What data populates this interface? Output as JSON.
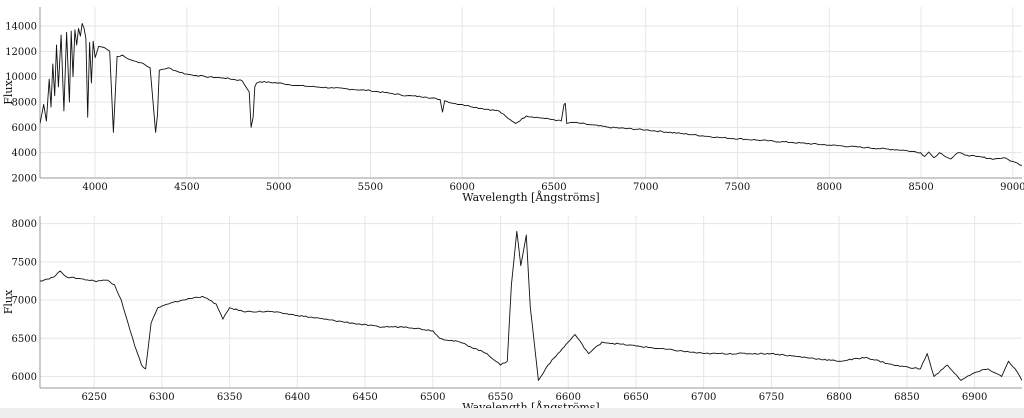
{
  "chart_data": [
    {
      "type": "line",
      "title": "",
      "xlabel": "Wavelength [Ångströms]",
      "ylabel": "Flux",
      "xlim": [
        3700,
        9050
      ],
      "ylim": [
        2000,
        15500
      ],
      "grid": true,
      "xticks": [
        4000,
        4500,
        5000,
        5500,
        6000,
        6500,
        7000,
        7500,
        8000,
        8500,
        9000
      ],
      "yticks": [
        2000,
        4000,
        6000,
        8000,
        10000,
        12000,
        14000
      ],
      "series": [
        {
          "x": [
            3700,
            3720,
            3735,
            3750,
            3760,
            3770,
            3780,
            3790,
            3800,
            3815,
            3830,
            3845,
            3860,
            3870,
            3880,
            3890,
            3900,
            3910,
            3920,
            3930,
            3940,
            3950,
            3960,
            3970,
            3980,
            3990,
            4000,
            4020,
            4050,
            4080,
            4100,
            4120,
            4150,
            4180,
            4200,
            4250,
            4300,
            4330,
            4340,
            4350,
            4380,
            4400,
            4450,
            4500,
            4550,
            4600,
            4700,
            4800,
            4840,
            4850,
            4861,
            4870,
            4880,
            4900,
            5000,
            5100,
            5200,
            5300,
            5400,
            5500,
            5600,
            5700,
            5800,
            5880,
            5893,
            5905,
            5950,
            6000,
            6100,
            6200,
            6250,
            6283,
            6290,
            6350,
            6450,
            6500,
            6540,
            6555,
            6562,
            6570,
            6600,
            6700,
            6800,
            7000,
            7200,
            7400,
            7600,
            7800,
            8000,
            8200,
            8400,
            8498,
            8520,
            8542,
            8570,
            8600,
            8662,
            8700,
            8750,
            8800,
            8900,
            8950,
            9000,
            9050
          ],
          "y": [
            6300,
            7800,
            6500,
            9800,
            7600,
            11000,
            8500,
            12500,
            9200,
            13300,
            7300,
            13500,
            8000,
            13600,
            10000,
            13700,
            12500,
            13800,
            13200,
            14200,
            13800,
            13000,
            6800,
            12700,
            9500,
            12800,
            11500,
            12400,
            12300,
            12000,
            5600,
            11600,
            11700,
            11400,
            11300,
            11100,
            10700,
            5600,
            7000,
            10500,
            10600,
            10700,
            10400,
            10200,
            10100,
            10000,
            9900,
            9700,
            8800,
            6000,
            6800,
            9200,
            9500,
            9600,
            9500,
            9300,
            9200,
            9100,
            9000,
            8900,
            8700,
            8500,
            8400,
            8200,
            7200,
            8100,
            7900,
            7800,
            7500,
            7300,
            6700,
            6400,
            6300,
            6900,
            6700,
            6600,
            6500,
            7800,
            7900,
            6300,
            6400,
            6200,
            6000,
            5800,
            5500,
            5200,
            5000,
            4800,
            4600,
            4400,
            4200,
            4000,
            3700,
            4050,
            3600,
            4000,
            3500,
            4000,
            3800,
            3700,
            3500,
            3600,
            3300,
            3000
          ]
        }
      ]
    },
    {
      "type": "line",
      "title": "",
      "xlabel": "Wavelength [Ångströms]",
      "ylabel": "Flux",
      "xlim": [
        6210,
        6935
      ],
      "ylim": [
        5850,
        8100
      ],
      "grid": true,
      "xticks": [
        6250,
        6300,
        6350,
        6400,
        6450,
        6500,
        6550,
        6600,
        6650,
        6700,
        6750,
        6800,
        6850,
        6900
      ],
      "yticks": [
        6000,
        6500,
        7000,
        7500,
        8000
      ],
      "series": [
        {
          "x": [
            6210,
            6220,
            6225,
            6230,
            6240,
            6250,
            6260,
            6265,
            6270,
            6275,
            6280,
            6285,
            6288,
            6292,
            6297,
            6305,
            6315,
            6330,
            6340,
            6345,
            6350,
            6360,
            6380,
            6400,
            6420,
            6440,
            6460,
            6480,
            6500,
            6505,
            6520,
            6540,
            6550,
            6555,
            6558,
            6562,
            6565,
            6569,
            6572,
            6578,
            6585,
            6600,
            6605,
            6615,
            6625,
            6650,
            6700,
            6750,
            6800,
            6820,
            6840,
            6860,
            6865,
            6870,
            6880,
            6890,
            6900,
            6910,
            6920,
            6925,
            6930,
            6935
          ],
          "y": [
            7250,
            7300,
            7380,
            7300,
            7280,
            7250,
            7260,
            7200,
            7000,
            6700,
            6400,
            6150,
            6100,
            6700,
            6900,
            6950,
            7000,
            7050,
            6950,
            6750,
            6900,
            6850,
            6850,
            6800,
            6750,
            6700,
            6650,
            6650,
            6600,
            6500,
            6450,
            6300,
            6150,
            6200,
            7200,
            7900,
            7450,
            7850,
            6900,
            5950,
            6150,
            6450,
            6550,
            6300,
            6450,
            6400,
            6300,
            6300,
            6200,
            6250,
            6150,
            6100,
            6300,
            6000,
            6150,
            5950,
            6050,
            6100,
            6000,
            6200,
            6100,
            5950
          ]
        }
      ]
    }
  ]
}
